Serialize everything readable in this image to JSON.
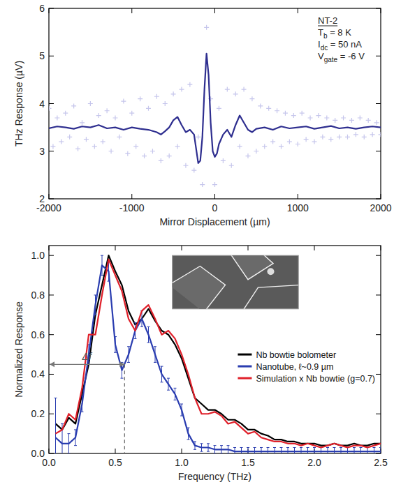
{
  "chart_data": [
    {
      "type": "line",
      "x_label": "Mirror Displacement (µm)",
      "y_label": "THz Response (µV)",
      "xlim": [
        -2000,
        2000
      ],
      "ylim": [
        2,
        6
      ],
      "xticks": [
        -2000,
        -1000,
        0,
        1000,
        2000
      ],
      "yticks": [
        2,
        3,
        4,
        5,
        6
      ],
      "annotations": [
        {
          "text": "NT-2"
        },
        {
          "text": "T",
          "sub": "b",
          "after": " = 8 K"
        },
        {
          "text": "I",
          "sub": "dc",
          "after": " = 50 nA"
        },
        {
          "text": "V",
          "sub": "gate",
          "after": " = -6 V"
        }
      ],
      "series": [
        {
          "type": "scatter",
          "color": "#c6c6ec",
          "marker": "plus",
          "x": [
            -2000,
            -1950,
            -1900,
            -1850,
            -1800,
            -1750,
            -1700,
            -1650,
            -1600,
            -1550,
            -1500,
            -1450,
            -1400,
            -1350,
            -1300,
            -1250,
            -1200,
            -1150,
            -1100,
            -1050,
            -1000,
            -950,
            -900,
            -850,
            -800,
            -750,
            -700,
            -650,
            -600,
            -550,
            -500,
            -450,
            -400,
            -350,
            -300,
            -250,
            -200,
            -150,
            -100,
            -50,
            0,
            50,
            100,
            150,
            200,
            250,
            300,
            350,
            400,
            450,
            500,
            550,
            600,
            650,
            700,
            750,
            800,
            850,
            900,
            950,
            1000,
            1050,
            1100,
            1150,
            1200,
            1250,
            1300,
            1350,
            1400,
            1450,
            1500,
            1550,
            1600,
            1650,
            1700,
            1750,
            1800,
            1850,
            1900,
            1950,
            2000
          ],
          "values": [
            3.9,
            3.1,
            3.7,
            3.2,
            3.8,
            3.3,
            3.95,
            3.05,
            3.6,
            3.25,
            4.0,
            3.1,
            3.75,
            3.2,
            3.85,
            3.0,
            3.7,
            3.3,
            4.05,
            2.95,
            3.8,
            3.1,
            4.1,
            2.9,
            3.9,
            3.0,
            4.15,
            2.8,
            4.0,
            2.9,
            4.2,
            3.1,
            4.3,
            2.7,
            4.4,
            2.6,
            3.3,
            2.3,
            5.6,
            4.1,
            2.3,
            3.9,
            2.8,
            4.3,
            2.7,
            4.2,
            3.1,
            4.3,
            2.9,
            4.1,
            3.0,
            3.95,
            3.1,
            3.9,
            3.2,
            3.85,
            3.1,
            3.8,
            3.2,
            3.75,
            3.15,
            3.8,
            3.25,
            3.7,
            3.2,
            3.75,
            3.3,
            3.7,
            3.25,
            3.65,
            3.3,
            3.7,
            3.3,
            3.65,
            3.35,
            3.7,
            3.3,
            3.65,
            3.35,
            3.6,
            3.35
          ]
        },
        {
          "type": "line",
          "color": "#2e2e8f",
          "line_style": "solid",
          "x": [
            -2000,
            -1900,
            -1800,
            -1700,
            -1600,
            -1500,
            -1400,
            -1300,
            -1200,
            -1100,
            -1000,
            -900,
            -800,
            -700,
            -650,
            -600,
            -550,
            -500,
            -450,
            -400,
            -350,
            -300,
            -250,
            -200,
            -175,
            -150,
            -125,
            -100,
            -75,
            -50,
            -25,
            0,
            25,
            50,
            100,
            150,
            200,
            250,
            300,
            350,
            400,
            450,
            500,
            600,
            700,
            800,
            900,
            1000,
            1100,
            1200,
            1300,
            1400,
            1500,
            1600,
            1700,
            1800,
            1900,
            2000
          ],
          "values": [
            3.48,
            3.52,
            3.5,
            3.47,
            3.52,
            3.5,
            3.55,
            3.48,
            3.5,
            3.45,
            3.5,
            3.47,
            3.45,
            3.4,
            3.35,
            3.42,
            3.5,
            3.65,
            3.72,
            3.55,
            3.4,
            3.45,
            3.35,
            2.75,
            2.8,
            3.3,
            4.3,
            5.05,
            4.6,
            3.6,
            3.0,
            2.88,
            2.95,
            3.15,
            3.35,
            3.45,
            3.3,
            3.55,
            3.75,
            3.6,
            3.45,
            3.4,
            3.47,
            3.5,
            3.45,
            3.52,
            3.48,
            3.5,
            3.52,
            3.47,
            3.5,
            3.53,
            3.48,
            3.5,
            3.47,
            3.5,
            3.52,
            3.5
          ]
        }
      ]
    },
    {
      "type": "line",
      "x_label": "Frequency (THz)",
      "y_label": "Normalized Response",
      "xlim": [
        0,
        2.5
      ],
      "ylim": [
        0,
        1.05
      ],
      "xticks": [
        {
          "value": 0,
          "label": "0.0"
        },
        {
          "value": 0.5,
          "label": "0.5"
        },
        {
          "value": 1,
          "label": "1.0"
        },
        {
          "value": 1.5,
          "label": "1.5"
        },
        {
          "value": 2,
          "label": "2.0"
        },
        {
          "value": 2.5,
          "label": "2.5"
        }
      ],
      "yticks": [
        {
          "value": 0,
          "label": "0.0"
        },
        {
          "value": 0.2,
          "label": "0.2"
        },
        {
          "value": 0.4,
          "label": "0.4"
        },
        {
          "value": 0.6,
          "label": "0.6"
        },
        {
          "value": 0.8,
          "label": "0.8"
        },
        {
          "value": 1,
          "label": "1.0"
        }
      ],
      "legend": "right",
      "delta_f": {
        "label": "Δf",
        "from": 0,
        "to": 0.57,
        "y": 0.45
      },
      "x": [
        0.05,
        0.1,
        0.15,
        0.2,
        0.25,
        0.3,
        0.35,
        0.4,
        0.45,
        0.5,
        0.55,
        0.6,
        0.65,
        0.7,
        0.75,
        0.8,
        0.85,
        0.9,
        0.95,
        1.0,
        1.05,
        1.1,
        1.15,
        1.2,
        1.25,
        1.3,
        1.35,
        1.4,
        1.45,
        1.5,
        1.55,
        1.6,
        1.65,
        1.7,
        1.75,
        1.8,
        1.85,
        1.9,
        1.95,
        2.0,
        2.05,
        2.1,
        2.15,
        2.2,
        2.25,
        2.3,
        2.35,
        2.4,
        2.45,
        2.5
      ],
      "series": [
        {
          "name": "Nb bowtie bolometer",
          "color": "#000000",
          "values": [
            0.15,
            0.12,
            0.18,
            0.15,
            0.3,
            0.45,
            0.7,
            0.85,
            1.0,
            0.92,
            0.85,
            0.72,
            0.65,
            0.68,
            0.73,
            0.67,
            0.62,
            0.6,
            0.55,
            0.48,
            0.38,
            0.28,
            0.25,
            0.22,
            0.22,
            0.2,
            0.17,
            0.17,
            0.15,
            0.12,
            0.12,
            0.1,
            0.09,
            0.07,
            0.07,
            0.06,
            0.06,
            0.05,
            0.05,
            0.05,
            0.04,
            0.04,
            0.05,
            0.04,
            0.04,
            0.05,
            0.04,
            0.04,
            0.05,
            0.05
          ]
        },
        {
          "name": "Nanotube, ℓ~0.9 µm",
          "color": "#2a3db0",
          "marker": "plus",
          "values": [
            0.08,
            0.05,
            0.05,
            0.08,
            0.25,
            0.5,
            0.75,
            0.95,
            0.92,
            0.55,
            0.42,
            0.5,
            0.62,
            0.68,
            0.6,
            0.5,
            0.4,
            0.35,
            0.3,
            0.22,
            0.1,
            0.04,
            0.03,
            0.03,
            0.02,
            0.02,
            0.02,
            0.01,
            0.01,
            0.01,
            0.01,
            0.01,
            0.01,
            0.01,
            0.01,
            0.01,
            0.01,
            0.01,
            0.01,
            0.01,
            0.01,
            0.01,
            0.01,
            0.01,
            0.01,
            0.01,
            0.01,
            0.01,
            0.01,
            0.01
          ],
          "errors": [
            0.2,
            0.1,
            0.05,
            0.04,
            0.04,
            0.05,
            0.05,
            0.05,
            0.05,
            0.04,
            0.04,
            0.04,
            0.04,
            0.04,
            0.04,
            0.04,
            0.04,
            0.03,
            0.03,
            0.03,
            0.03,
            0.02,
            0.02,
            0.02,
            0.02,
            0.02,
            0.02,
            0.02,
            0.02,
            0.02,
            0.02,
            0.02,
            0.02,
            0.02,
            0.02,
            0.02,
            0.02,
            0.02,
            0.02,
            0.02,
            0.02,
            0.02,
            0.02,
            0.02,
            0.02,
            0.02,
            0.02,
            0.02,
            0.02,
            0.02
          ]
        },
        {
          "name": "Simulation x Nb bowtie (g=0.7)",
          "color": "#e0202a",
          "values": [
            0.1,
            0.12,
            0.2,
            0.17,
            0.33,
            0.6,
            0.6,
            0.8,
            0.98,
            0.9,
            0.82,
            0.68,
            0.62,
            0.72,
            0.75,
            0.68,
            0.6,
            0.62,
            0.58,
            0.5,
            0.4,
            0.28,
            0.2,
            0.2,
            0.21,
            0.19,
            0.15,
            0.16,
            0.13,
            0.1,
            0.11,
            0.08,
            0.07,
            0.06,
            0.06,
            0.05,
            0.05,
            0.04,
            0.05,
            0.04,
            0.03,
            0.04,
            0.05,
            0.04,
            0.03,
            0.04,
            0.04,
            0.03,
            0.04,
            0.05
          ]
        }
      ]
    }
  ]
}
